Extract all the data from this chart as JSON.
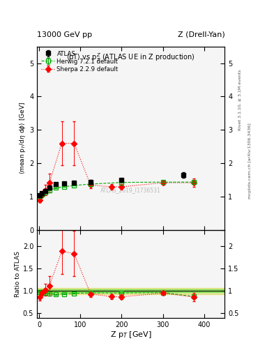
{
  "title_left": "13000 GeV pp",
  "title_right": "Z (Drell-Yan)",
  "plot_title": "<pT> vs p_{T}^{Z} (ATLAS UE in Z production)",
  "watermark": "ATLAS_2019_I1736531",
  "right_label_top": "Rivet 3.1.10, ≥ 3.1M events",
  "right_label_bot": "mcplots.cern.ch [arXiv:1306.3436]",
  "atlas_x": [
    2.5,
    7.5,
    15.0,
    25.0,
    40.0,
    60.0,
    85.0,
    125.0,
    200.0,
    350.0
  ],
  "atlas_y": [
    1.05,
    1.1,
    1.18,
    1.28,
    1.38,
    1.4,
    1.42,
    1.45,
    1.5,
    1.65
  ],
  "atlas_yerr": [
    0.03,
    0.03,
    0.03,
    0.04,
    0.04,
    0.04,
    0.04,
    0.05,
    0.05,
    0.08
  ],
  "herwig_x": [
    2.5,
    7.5,
    15.0,
    25.0,
    40.0,
    60.0,
    85.0,
    125.0,
    200.0,
    300.0,
    375.0
  ],
  "herwig_y": [
    1.02,
    1.06,
    1.12,
    1.2,
    1.27,
    1.3,
    1.34,
    1.38,
    1.43,
    1.44,
    1.44
  ],
  "herwig_yerr": [
    0.005,
    0.005,
    0.005,
    0.005,
    0.005,
    0.005,
    0.005,
    0.005,
    0.005,
    0.005,
    0.005
  ],
  "sherpa_x": [
    2.5,
    7.5,
    15.0,
    25.0,
    55.0,
    85.0,
    125.0,
    175.0,
    200.0,
    300.0,
    375.0
  ],
  "sherpa_y": [
    0.9,
    1.05,
    1.2,
    1.42,
    2.6,
    2.6,
    1.35,
    1.3,
    1.3,
    1.42,
    1.42
  ],
  "sherpa_yerr": [
    0.07,
    0.07,
    0.15,
    0.28,
    0.65,
    0.65,
    0.1,
    0.08,
    0.08,
    0.06,
    0.12
  ],
  "herwig_ratio_x": [
    2.5,
    7.5,
    15.0,
    25.0,
    40.0,
    60.0,
    85.0,
    125.0,
    200.0,
    300.0,
    375.0
  ],
  "herwig_ratio_y": [
    0.97,
    0.965,
    0.95,
    0.937,
    0.92,
    0.929,
    0.943,
    0.952,
    0.953,
    0.96,
    0.873
  ],
  "herwig_ratio_yerr": [
    0.005,
    0.005,
    0.005,
    0.005,
    0.005,
    0.005,
    0.005,
    0.005,
    0.005,
    0.005,
    0.005
  ],
  "sherpa_ratio_x": [
    2.5,
    7.5,
    15.0,
    25.0,
    55.0,
    85.0,
    125.0,
    175.0,
    200.0,
    300.0,
    375.0
  ],
  "sherpa_ratio_y": [
    0.86,
    0.955,
    1.02,
    1.11,
    1.88,
    1.83,
    0.93,
    0.87,
    0.867,
    0.947,
    0.861
  ],
  "sherpa_ratio_yerr": [
    0.07,
    0.065,
    0.13,
    0.22,
    0.5,
    0.5,
    0.07,
    0.06,
    0.06,
    0.04,
    0.09
  ],
  "main_ylim": [
    0.0,
    5.5
  ],
  "main_yticks": [
    0,
    1,
    2,
    3,
    4,
    5
  ],
  "ratio_ylim": [
    0.4,
    2.35
  ],
  "ratio_yticks": [
    0.5,
    1.0,
    1.5,
    2.0
  ],
  "xlim": [
    -5,
    450
  ],
  "xticks": [
    0,
    100,
    200,
    300,
    400
  ],
  "color_atlas": "black",
  "color_herwig": "#00aa00",
  "color_sherpa": "red",
  "bg_color": "#f5f5f5",
  "band_green_color": "#00cc00",
  "band_green_alpha": 0.35,
  "band_yellow_color": "#cccc00",
  "band_yellow_alpha": 0.35,
  "band_inner_err": 0.03,
  "band_outer_err": 0.07
}
